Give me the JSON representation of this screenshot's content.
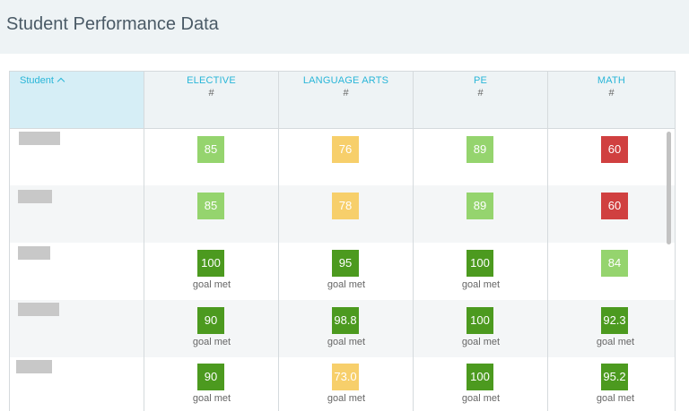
{
  "page": {
    "title": "Student Performance Data"
  },
  "table": {
    "student_header": "Student",
    "columns": [
      {
        "name": "ELECTIVE",
        "unit": "#"
      },
      {
        "name": "LANGUAGE ARTS",
        "unit": "#"
      },
      {
        "name": "PE",
        "unit": "#"
      },
      {
        "name": "MATH",
        "unit": "#"
      }
    ],
    "rows": [
      {
        "cells": [
          {
            "score": "85",
            "status": "light-green",
            "note": ""
          },
          {
            "score": "76",
            "status": "yellow",
            "note": ""
          },
          {
            "score": "89",
            "status": "light-green",
            "note": ""
          },
          {
            "score": "60",
            "status": "red",
            "note": ""
          }
        ]
      },
      {
        "cells": [
          {
            "score": "85",
            "status": "light-green",
            "note": ""
          },
          {
            "score": "78",
            "status": "yellow",
            "note": ""
          },
          {
            "score": "89",
            "status": "light-green",
            "note": ""
          },
          {
            "score": "60",
            "status": "red",
            "note": ""
          }
        ]
      },
      {
        "cells": [
          {
            "score": "100",
            "status": "dark-green",
            "note": "goal met"
          },
          {
            "score": "95",
            "status": "dark-green",
            "note": "goal met"
          },
          {
            "score": "100",
            "status": "dark-green",
            "note": "goal met"
          },
          {
            "score": "84",
            "status": "light-green",
            "note": ""
          }
        ]
      },
      {
        "cells": [
          {
            "score": "90",
            "status": "dark-green",
            "note": "goal met"
          },
          {
            "score": "98.8",
            "status": "dark-green",
            "note": "goal met"
          },
          {
            "score": "100",
            "status": "dark-green",
            "note": "goal met"
          },
          {
            "score": "92.3",
            "status": "dark-green",
            "note": "goal met"
          }
        ]
      },
      {
        "cells": [
          {
            "score": "90",
            "status": "dark-green",
            "note": "goal met"
          },
          {
            "score": "73.0",
            "status": "yellow",
            "note": "goal met"
          },
          {
            "score": "100",
            "status": "dark-green",
            "note": "goal met"
          },
          {
            "score": "95.2",
            "status": "dark-green",
            "note": "goal met"
          }
        ]
      }
    ]
  },
  "colors": {
    "dark-green": "#4c9a1f",
    "light-green": "#95d46e",
    "yellow": "#f7cf6b",
    "red": "#d04040",
    "accent": "#29b6d8"
  }
}
